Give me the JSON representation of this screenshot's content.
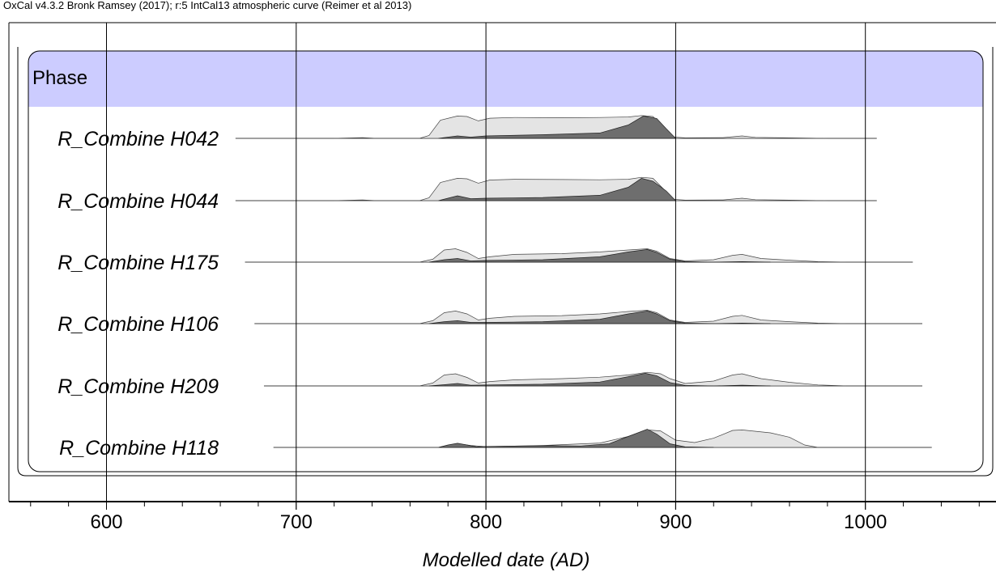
{
  "chart_data": {
    "type": "area",
    "header": "OxCal v4.3.2 Bronk Ramsey (2017); r:5 IntCal13 atmospheric curve (Reimer et al 2013)",
    "xlabel": "Modelled date (AD)",
    "xlim": [
      548,
      1066
    ],
    "xticks": [
      600,
      700,
      800,
      900,
      1000
    ],
    "phase_label": "Phase",
    "colors": {
      "phase_band": "#ccccff",
      "prior": "#e4e4e4",
      "posterior": "#6e6e6e",
      "frame": "#000000"
    },
    "rows": [
      {
        "name": "R_Combine H042",
        "range_line": [
          668,
          1006
        ],
        "prior": [
          [
            720,
            0
          ],
          [
            735,
            0.03
          ],
          [
            742,
            0
          ],
          [
            765,
            0
          ],
          [
            770,
            0.12
          ],
          [
            776,
            0.75
          ],
          [
            785,
            0.92
          ],
          [
            790,
            0.9
          ],
          [
            796,
            0.72
          ],
          [
            802,
            0.83
          ],
          [
            815,
            0.86
          ],
          [
            840,
            0.85
          ],
          [
            860,
            0.86
          ],
          [
            875,
            0.88
          ],
          [
            882,
            0.94
          ],
          [
            888,
            0.9
          ],
          [
            894,
            0.45
          ],
          [
            898,
            0.06
          ],
          [
            905,
            0.02
          ],
          [
            925,
            0.03
          ],
          [
            935,
            0.1
          ],
          [
            942,
            0.04
          ],
          [
            960,
            0.02
          ],
          [
            980,
            0
          ]
        ],
        "posterior": [
          [
            775,
            0
          ],
          [
            780,
            0.05
          ],
          [
            785,
            0.1
          ],
          [
            792,
            0.05
          ],
          [
            800,
            0.1
          ],
          [
            830,
            0.15
          ],
          [
            860,
            0.22
          ],
          [
            875,
            0.55
          ],
          [
            883,
            0.92
          ],
          [
            890,
            0.82
          ],
          [
            895,
            0.4
          ],
          [
            900,
            0
          ]
        ]
      },
      {
        "name": "R_Combine H044",
        "range_line": [
          668,
          1006
        ],
        "prior": [
          [
            720,
            0
          ],
          [
            735,
            0.03
          ],
          [
            742,
            0
          ],
          [
            765,
            0
          ],
          [
            770,
            0.12
          ],
          [
            776,
            0.75
          ],
          [
            785,
            0.92
          ],
          [
            790,
            0.9
          ],
          [
            796,
            0.72
          ],
          [
            802,
            0.85
          ],
          [
            815,
            0.88
          ],
          [
            840,
            0.87
          ],
          [
            860,
            0.86
          ],
          [
            875,
            0.88
          ],
          [
            882,
            0.96
          ],
          [
            888,
            0.92
          ],
          [
            894,
            0.45
          ],
          [
            898,
            0.06
          ],
          [
            905,
            0.02
          ],
          [
            925,
            0.03
          ],
          [
            935,
            0.1
          ],
          [
            942,
            0.04
          ],
          [
            960,
            0.02
          ],
          [
            980,
            0
          ]
        ],
        "posterior": [
          [
            775,
            0
          ],
          [
            780,
            0.1
          ],
          [
            785,
            0.2
          ],
          [
            792,
            0.08
          ],
          [
            800,
            0.1
          ],
          [
            830,
            0.13
          ],
          [
            860,
            0.22
          ],
          [
            875,
            0.55
          ],
          [
            882,
            0.92
          ],
          [
            888,
            0.8
          ],
          [
            895,
            0.4
          ],
          [
            900,
            0
          ]
        ]
      },
      {
        "name": "R_Combine H175",
        "range_line": [
          673,
          1025
        ],
        "prior": [
          [
            765,
            0
          ],
          [
            772,
            0.12
          ],
          [
            778,
            0.5
          ],
          [
            784,
            0.55
          ],
          [
            790,
            0.4
          ],
          [
            796,
            0.15
          ],
          [
            802,
            0.22
          ],
          [
            815,
            0.32
          ],
          [
            840,
            0.35
          ],
          [
            860,
            0.42
          ],
          [
            875,
            0.5
          ],
          [
            885,
            0.55
          ],
          [
            890,
            0.45
          ],
          [
            897,
            0.15
          ],
          [
            905,
            0.05
          ],
          [
            920,
            0.1
          ],
          [
            930,
            0.28
          ],
          [
            935,
            0.32
          ],
          [
            945,
            0.15
          ],
          [
            960,
            0.08
          ],
          [
            975,
            0.02
          ],
          [
            990,
            0
          ]
        ],
        "posterior": [
          [
            770,
            0
          ],
          [
            778,
            0.1
          ],
          [
            785,
            0.15
          ],
          [
            792,
            0.05
          ],
          [
            800,
            0.07
          ],
          [
            830,
            0.1
          ],
          [
            860,
            0.22
          ],
          [
            875,
            0.42
          ],
          [
            885,
            0.52
          ],
          [
            890,
            0.4
          ],
          [
            897,
            0.12
          ],
          [
            905,
            0.02
          ],
          [
            920,
            0
          ],
          [
            935,
            0.02
          ],
          [
            950,
            0
          ]
        ]
      },
      {
        "name": "R_Combine H106",
        "range_line": [
          678,
          1030
        ],
        "prior": [
          [
            765,
            0
          ],
          [
            772,
            0.12
          ],
          [
            778,
            0.45
          ],
          [
            784,
            0.52
          ],
          [
            790,
            0.4
          ],
          [
            796,
            0.15
          ],
          [
            802,
            0.22
          ],
          [
            815,
            0.3
          ],
          [
            840,
            0.33
          ],
          [
            860,
            0.4
          ],
          [
            875,
            0.5
          ],
          [
            885,
            0.55
          ],
          [
            890,
            0.45
          ],
          [
            897,
            0.15
          ],
          [
            905,
            0.05
          ],
          [
            920,
            0.1
          ],
          [
            930,
            0.3
          ],
          [
            935,
            0.34
          ],
          [
            945,
            0.15
          ],
          [
            960,
            0.08
          ],
          [
            975,
            0.02
          ],
          [
            990,
            0
          ]
        ],
        "posterior": [
          [
            770,
            0
          ],
          [
            778,
            0.08
          ],
          [
            785,
            0.12
          ],
          [
            792,
            0.05
          ],
          [
            800,
            0.05
          ],
          [
            830,
            0.08
          ],
          [
            860,
            0.18
          ],
          [
            875,
            0.4
          ],
          [
            885,
            0.52
          ],
          [
            890,
            0.4
          ],
          [
            897,
            0.12
          ],
          [
            905,
            0.02
          ],
          [
            920,
            0
          ],
          [
            935,
            0.02
          ],
          [
            950,
            0
          ]
        ]
      },
      {
        "name": "R_Combine H209",
        "range_line": [
          683,
          1030
        ],
        "prior": [
          [
            765,
            0
          ],
          [
            772,
            0.12
          ],
          [
            778,
            0.45
          ],
          [
            784,
            0.5
          ],
          [
            790,
            0.35
          ],
          [
            796,
            0.12
          ],
          [
            802,
            0.18
          ],
          [
            815,
            0.25
          ],
          [
            840,
            0.3
          ],
          [
            860,
            0.36
          ],
          [
            875,
            0.45
          ],
          [
            885,
            0.56
          ],
          [
            892,
            0.5
          ],
          [
            897,
            0.3
          ],
          [
            905,
            0.1
          ],
          [
            920,
            0.2
          ],
          [
            930,
            0.45
          ],
          [
            935,
            0.5
          ],
          [
            945,
            0.3
          ],
          [
            960,
            0.15
          ],
          [
            975,
            0.04
          ],
          [
            990,
            0
          ]
        ],
        "posterior": [
          [
            770,
            0
          ],
          [
            778,
            0.05
          ],
          [
            785,
            0.1
          ],
          [
            792,
            0.03
          ],
          [
            800,
            0.04
          ],
          [
            830,
            0.07
          ],
          [
            860,
            0.16
          ],
          [
            875,
            0.38
          ],
          [
            884,
            0.52
          ],
          [
            890,
            0.42
          ],
          [
            897,
            0.14
          ],
          [
            905,
            0.02
          ],
          [
            920,
            0
          ],
          [
            935,
            0.03
          ],
          [
            950,
            0
          ]
        ]
      },
      {
        "name": "R_Combine H118",
        "range_line": [
          688,
          1035
        ],
        "prior": [
          [
            775,
            0
          ],
          [
            780,
            0.08
          ],
          [
            785,
            0.15
          ],
          [
            792,
            0.08
          ],
          [
            800,
            0.03
          ],
          [
            830,
            0.08
          ],
          [
            860,
            0.18
          ],
          [
            875,
            0.45
          ],
          [
            885,
            0.72
          ],
          [
            892,
            0.68
          ],
          [
            900,
            0.3
          ],
          [
            910,
            0.2
          ],
          [
            920,
            0.38
          ],
          [
            930,
            0.7
          ],
          [
            935,
            0.72
          ],
          [
            950,
            0.6
          ],
          [
            960,
            0.42
          ],
          [
            968,
            0.1
          ],
          [
            975,
            0
          ]
        ],
        "posterior": [
          [
            775,
            0
          ],
          [
            780,
            0.1
          ],
          [
            785,
            0.17
          ],
          [
            790,
            0.1
          ],
          [
            795,
            0.02
          ],
          [
            800,
            0.04
          ],
          [
            820,
            0.06
          ],
          [
            835,
            0.07
          ],
          [
            850,
            0.06
          ],
          [
            865,
            0.15
          ],
          [
            875,
            0.45
          ],
          [
            885,
            0.75
          ],
          [
            890,
            0.55
          ],
          [
            897,
            0.15
          ],
          [
            905,
            0.02
          ],
          [
            920,
            0
          ]
        ]
      }
    ]
  }
}
